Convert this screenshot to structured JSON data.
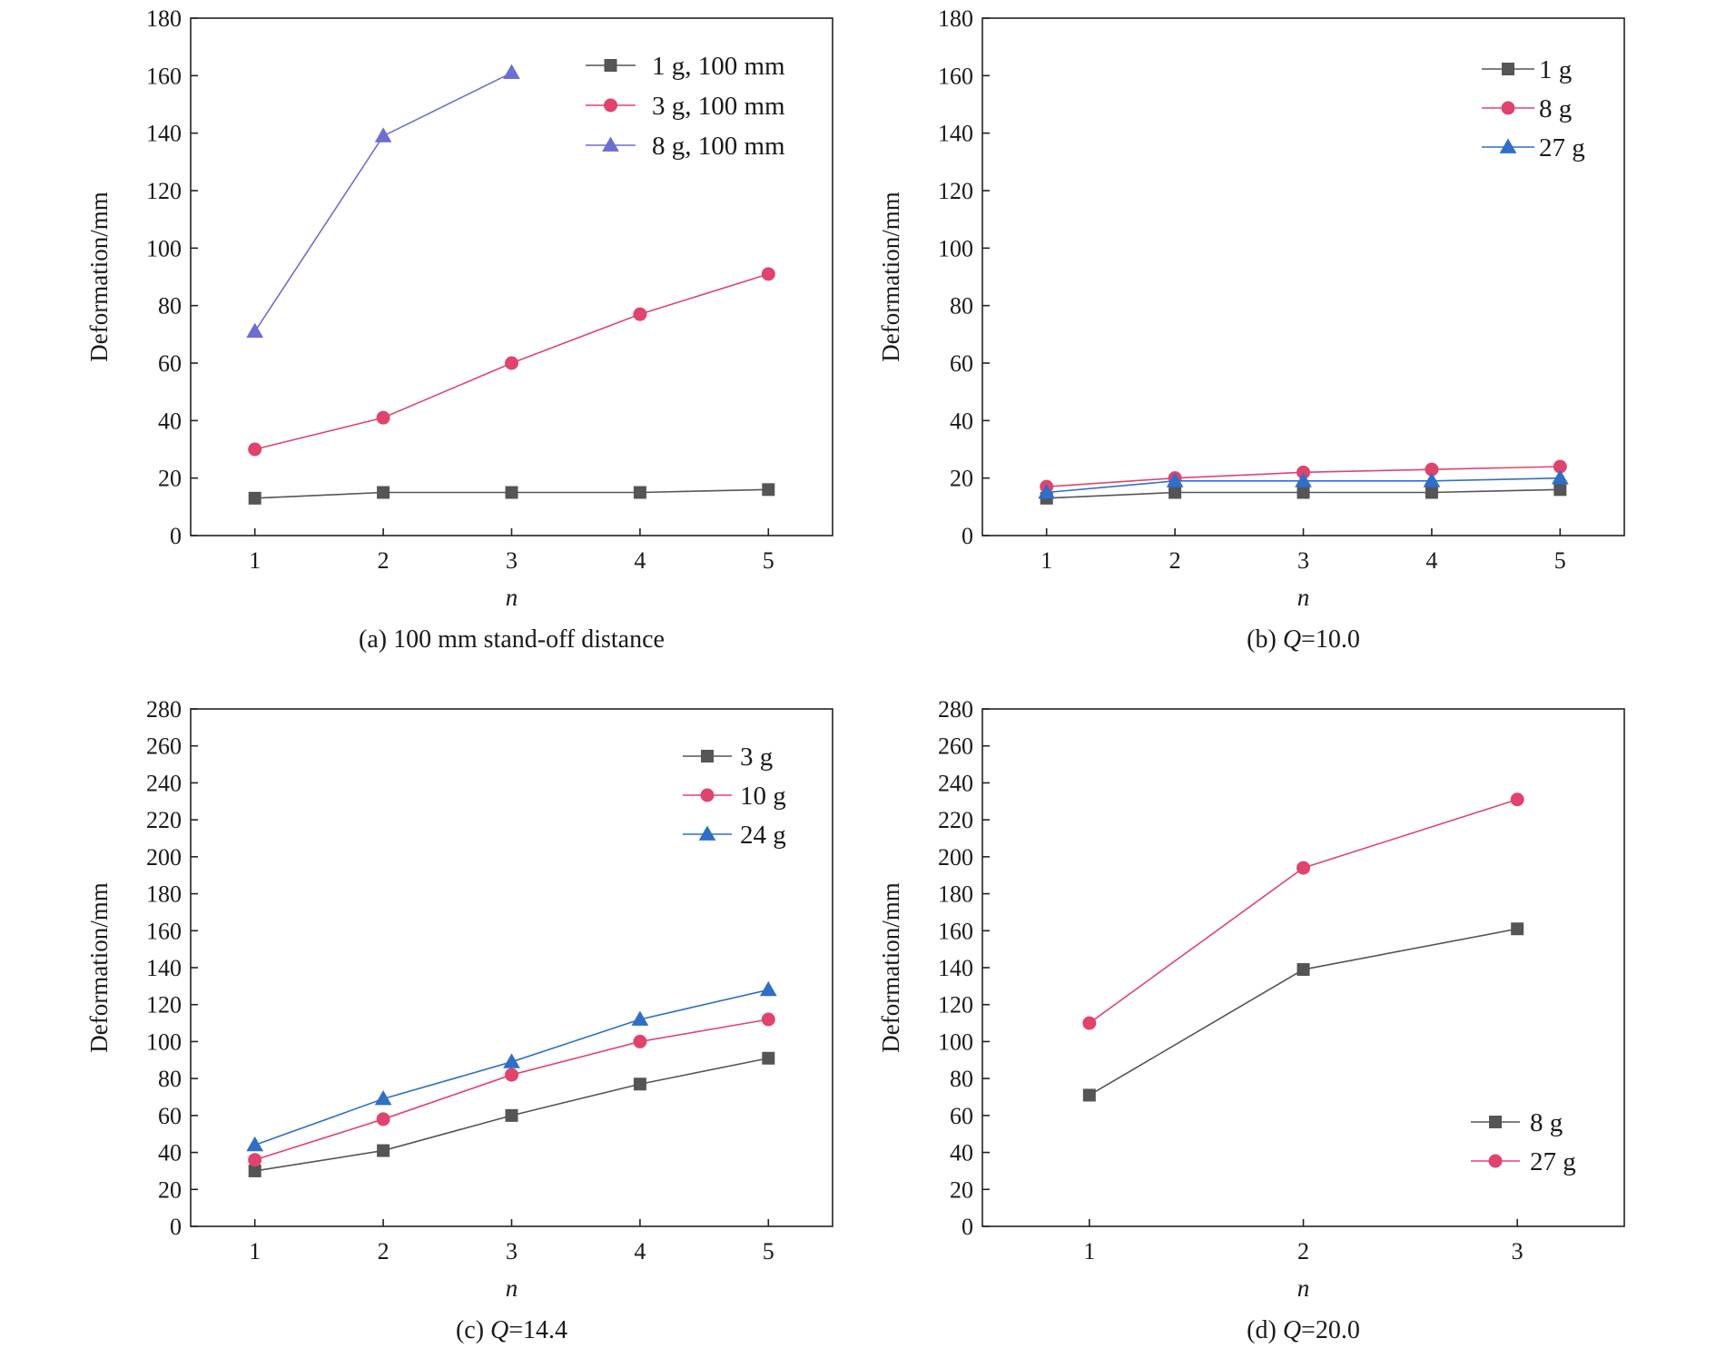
{
  "chart_data": [
    {
      "id": "a",
      "type": "line",
      "caption_parts": [
        {
          "text": "(a) 100 mm stand-off distance",
          "italic": false
        }
      ],
      "xlabel": "n",
      "ylabel": "Deformation/mm",
      "x_ticks": [
        1,
        2,
        3,
        4,
        5
      ],
      "y_ticks": [
        0,
        20,
        40,
        60,
        80,
        100,
        120,
        140,
        160,
        180
      ],
      "xlim": [
        0.5,
        5.5
      ],
      "ylim": [
        0,
        180
      ],
      "legend_position": "top-right",
      "series": [
        {
          "name": "1 g, 100 mm",
          "color": "#555555",
          "marker": "square",
          "x": [
            1,
            2,
            3,
            4,
            5
          ],
          "y": [
            13,
            15,
            15,
            15,
            16
          ]
        },
        {
          "name": "3 g, 100 mm",
          "color": "#e0446e",
          "marker": "circle",
          "x": [
            1,
            2,
            3,
            4,
            5
          ],
          "y": [
            30,
            41,
            60,
            77,
            91
          ]
        },
        {
          "name": "8 g, 100 mm",
          "color": "#6b6fd1",
          "marker": "triangle",
          "x": [
            1,
            2,
            3
          ],
          "y": [
            71,
            139,
            161
          ]
        }
      ]
    },
    {
      "id": "b",
      "type": "line",
      "caption_parts": [
        {
          "text": "(b) ",
          "italic": false
        },
        {
          "text": "Q",
          "italic": true
        },
        {
          "text": "=10.0",
          "italic": false
        }
      ],
      "xlabel": "n",
      "ylabel": "Deformation/mm",
      "x_ticks": [
        1,
        2,
        3,
        4,
        5
      ],
      "y_ticks": [
        0,
        20,
        40,
        60,
        80,
        100,
        120,
        140,
        160,
        180
      ],
      "xlim": [
        0.5,
        5.5
      ],
      "ylim": [
        0,
        180
      ],
      "legend_position": "top-right",
      "series": [
        {
          "name": "1 g",
          "color": "#555555",
          "marker": "square",
          "x": [
            1,
            2,
            3,
            4,
            5
          ],
          "y": [
            13,
            15,
            15,
            15,
            16
          ]
        },
        {
          "name": "8 g",
          "color": "#e0446e",
          "marker": "circle",
          "x": [
            1,
            2,
            3,
            4,
            5
          ],
          "y": [
            17,
            20,
            22,
            23,
            24
          ]
        },
        {
          "name": "27 g",
          "color": "#2f6fc7",
          "marker": "triangle",
          "x": [
            1,
            2,
            3,
            4,
            5
          ],
          "y": [
            15,
            19,
            19,
            19,
            20
          ]
        }
      ]
    },
    {
      "id": "c",
      "type": "line",
      "caption_parts": [
        {
          "text": "(c) ",
          "italic": false
        },
        {
          "text": "Q",
          "italic": true
        },
        {
          "text": "=14.4",
          "italic": false
        }
      ],
      "xlabel": "n",
      "ylabel": "Deformation/mm",
      "x_ticks": [
        1,
        2,
        3,
        4,
        5
      ],
      "y_ticks": [
        0,
        20,
        40,
        60,
        80,
        100,
        120,
        140,
        160,
        180,
        200,
        220,
        240,
        260,
        280
      ],
      "xlim": [
        0.5,
        5.5
      ],
      "ylim": [
        0,
        280
      ],
      "legend_position": "top-right",
      "series": [
        {
          "name": "3 g",
          "color": "#555555",
          "marker": "square",
          "x": [
            1,
            2,
            3,
            4,
            5
          ],
          "y": [
            30,
            41,
            60,
            77,
            91
          ]
        },
        {
          "name": "10 g",
          "color": "#e0446e",
          "marker": "circle",
          "x": [
            1,
            2,
            3,
            4,
            5
          ],
          "y": [
            36,
            58,
            82,
            100,
            112
          ]
        },
        {
          "name": "24 g",
          "color": "#2f6fc7",
          "marker": "triangle",
          "x": [
            1,
            2,
            3,
            4,
            5
          ],
          "y": [
            44,
            69,
            89,
            112,
            128
          ]
        }
      ]
    },
    {
      "id": "d",
      "type": "line",
      "caption_parts": [
        {
          "text": "(d) ",
          "italic": false
        },
        {
          "text": "Q",
          "italic": true
        },
        {
          "text": "=20.0",
          "italic": false
        }
      ],
      "xlabel": "n",
      "ylabel": "Deformation/mm",
      "x_ticks": [
        1,
        2,
        3
      ],
      "y_ticks": [
        0,
        20,
        40,
        60,
        80,
        100,
        120,
        140,
        160,
        180,
        200,
        220,
        240,
        260,
        280
      ],
      "xlim": [
        0.5,
        3.5
      ],
      "ylim": [
        0,
        280
      ],
      "legend_position": "bottom-right",
      "series": [
        {
          "name": "8 g",
          "color": "#555555",
          "marker": "square",
          "x": [
            1,
            2,
            3
          ],
          "y": [
            71,
            139,
            161
          ]
        },
        {
          "name": "27 g",
          "color": "#e0446e",
          "marker": "circle",
          "x": [
            1,
            2,
            3
          ],
          "y": [
            110,
            194,
            231
          ]
        }
      ]
    }
  ]
}
